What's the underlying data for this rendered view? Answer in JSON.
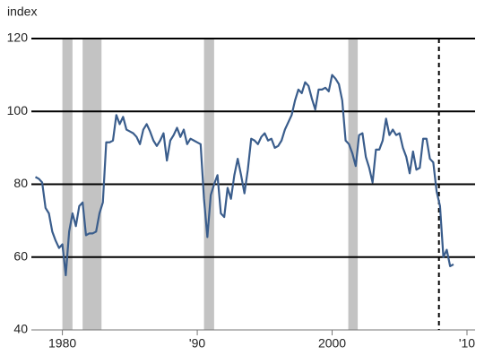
{
  "chart_data": {
    "type": "line",
    "y_label": "index",
    "x": [
      1978.0,
      1978.25,
      1978.5,
      1978.75,
      1979.0,
      1979.25,
      1979.5,
      1979.75,
      1980.0,
      1980.25,
      1980.5,
      1980.75,
      1981.0,
      1981.25,
      1981.5,
      1981.75,
      1982.0,
      1982.25,
      1982.5,
      1982.75,
      1983.0,
      1983.25,
      1983.5,
      1983.75,
      1984.0,
      1984.25,
      1984.5,
      1984.75,
      1985.0,
      1985.25,
      1985.5,
      1985.75,
      1986.0,
      1986.25,
      1986.5,
      1986.75,
      1987.0,
      1987.25,
      1987.5,
      1987.75,
      1988.0,
      1988.25,
      1988.5,
      1988.75,
      1989.0,
      1989.25,
      1989.5,
      1989.75,
      1990.0,
      1990.25,
      1990.5,
      1990.75,
      1991.0,
      1991.25,
      1991.5,
      1991.75,
      1992.0,
      1992.25,
      1992.5,
      1992.75,
      1993.0,
      1993.25,
      1993.5,
      1993.75,
      1994.0,
      1994.25,
      1994.5,
      1994.75,
      1995.0,
      1995.25,
      1995.5,
      1995.75,
      1996.0,
      1996.25,
      1996.5,
      1996.75,
      1997.0,
      1997.25,
      1997.5,
      1997.75,
      1998.0,
      1998.25,
      1998.5,
      1998.75,
      1999.0,
      1999.25,
      1999.5,
      1999.75,
      2000.0,
      2000.25,
      2000.5,
      2000.75,
      2001.0,
      2001.25,
      2001.5,
      2001.75,
      2002.0,
      2002.25,
      2002.5,
      2002.75,
      2003.0,
      2003.25,
      2003.5,
      2003.75,
      2004.0,
      2004.25,
      2004.5,
      2004.75,
      2005.0,
      2005.25,
      2005.5,
      2005.75,
      2006.0,
      2006.25,
      2006.5,
      2006.75,
      2007.0,
      2007.25,
      2007.5,
      2007.75,
      2008.0,
      2008.25,
      2008.5,
      2008.75,
      2009.0
    ],
    "series": [
      {
        "color": "#3a5d8c",
        "values": [
          82,
          81.5,
          80.5,
          73.5,
          72,
          67,
          64.5,
          62.5,
          63.5,
          55,
          67,
          72,
          68.5,
          74,
          75,
          66,
          66.5,
          66.5,
          67,
          72,
          75,
          91.5,
          91.5,
          92,
          99,
          96.5,
          98.5,
          95,
          94.5,
          94,
          93,
          91,
          95,
          96.5,
          94.5,
          92,
          90.5,
          92,
          94,
          86.5,
          92,
          93.5,
          95.5,
          93,
          95,
          91,
          92.5,
          92,
          91.5,
          91,
          76,
          65.5,
          77,
          80,
          82.5,
          72,
          71,
          79,
          76,
          82.5,
          87,
          82.5,
          77.5,
          84,
          92.5,
          92,
          91,
          93,
          94,
          92,
          92.5,
          90,
          90.5,
          92,
          95,
          97,
          99,
          103,
          106,
          105,
          108,
          107,
          103.5,
          100.5,
          106,
          106,
          106.5,
          105.5,
          110,
          109,
          107.5,
          103,
          92,
          91,
          88.5,
          85,
          93.5,
          94,
          87.5,
          84.5,
          80.5,
          89.5,
          89.5,
          92,
          98,
          93.5,
          95,
          93.5,
          94,
          90,
          87.5,
          83,
          89,
          84,
          84.5,
          92.5,
          92.5,
          87,
          86,
          78,
          74,
          60,
          62,
          57.5,
          58
        ]
      }
    ],
    "shaded_regions": [
      [
        1980.0,
        1980.75
      ],
      [
        1981.5,
        1982.9
      ],
      [
        1990.5,
        1991.25
      ],
      [
        2001.2,
        2001.9
      ]
    ],
    "shade_color": "#c3c3c3",
    "vline": 2007.92,
    "xlim": [
      1977.7,
      2010.6
    ],
    "xticks": [
      1980,
      {
        "value": 1990,
        "label": "'90"
      },
      2000,
      {
        "value": 2010,
        "label": "'10"
      }
    ],
    "ylim": [
      40,
      120
    ],
    "yticks": [
      40,
      60,
      80,
      100,
      120
    ],
    "grid": true
  }
}
